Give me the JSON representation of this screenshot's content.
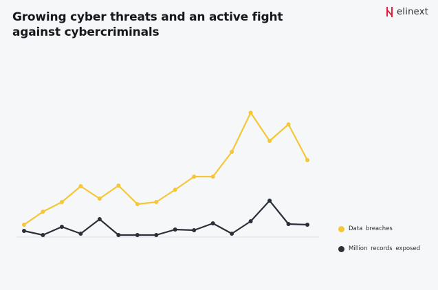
{
  "title": "Growing cyber threats and an active fight against cybercriminals",
  "logo": {
    "text": "elinext",
    "color": "#e5213a"
  },
  "chart_data": {
    "type": "line",
    "title": "Growing cyber threats and an active fight against cybercriminals",
    "xlabel": "",
    "ylabel": "",
    "grid": false,
    "legend_position": "right",
    "x": [
      1,
      2,
      3,
      4,
      5,
      6,
      7,
      8,
      9,
      10,
      11,
      12,
      13,
      14,
      15,
      16
    ],
    "ylim": [
      0,
      190
    ],
    "series": [
      {
        "name": "Data breaches",
        "color": "#f5c636",
        "values": [
          18,
          37,
          51,
          74,
          56,
          75,
          48,
          51,
          69,
          88,
          88,
          124,
          181,
          140,
          164,
          112
        ]
      },
      {
        "name": "Million records exposed",
        "color": "#2b2f38",
        "values": [
          9,
          3,
          15,
          5,
          26,
          3,
          3,
          3,
          11,
          10,
          20,
          5,
          23,
          53,
          19,
          18
        ]
      }
    ]
  }
}
